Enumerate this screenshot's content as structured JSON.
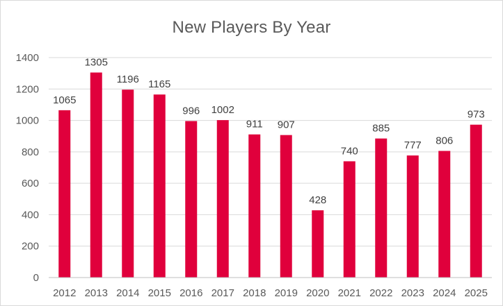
{
  "chart_data": {
    "type": "bar",
    "title": "New Players By Year",
    "xlabel": "",
    "ylabel": "",
    "categories": [
      "2012",
      "2013",
      "2014",
      "2015",
      "2016",
      "2017",
      "2018",
      "2019",
      "2020",
      "2021",
      "2022",
      "2023",
      "2024",
      "2025"
    ],
    "values": [
      1065,
      1305,
      1196,
      1165,
      996,
      1002,
      911,
      907,
      428,
      740,
      885,
      777,
      806,
      973
    ],
    "data_labels": [
      "1065",
      "1305",
      "1196",
      "1165",
      "996",
      "1002",
      "911",
      "907",
      "428",
      "740",
      "885",
      "777",
      "806",
      "973"
    ],
    "ylim": [
      0,
      1400
    ],
    "yticks": [
      "0",
      "200",
      "400",
      "600",
      "800",
      "1000",
      "1200",
      "1400"
    ],
    "grid": true,
    "legend": "none",
    "colors": {
      "bar": "#e0003c",
      "grid": "#d9d9d9",
      "axis": "#bfbfbf",
      "text": "#595959"
    }
  }
}
